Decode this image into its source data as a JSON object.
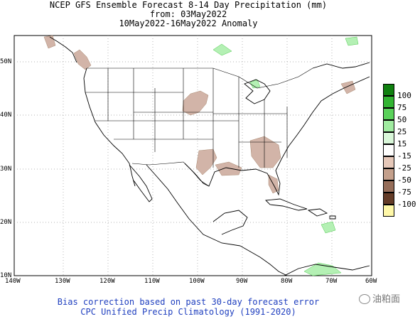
{
  "title": {
    "line1": "NCEP GFS Ensemble Forecast 8-14 Day Precipitation (mm)",
    "line2": "from: 03May2022",
    "line3": "10May2022-16May2022 Anomaly"
  },
  "map": {
    "lat_labels": [
      "50N",
      "40N",
      "30N",
      "20N",
      "10N"
    ],
    "lon_labels": [
      "140W",
      "130W",
      "120W",
      "110W",
      "100W",
      "90W",
      "80W",
      "70W",
      "60W"
    ],
    "colors": {
      "wet_light": "#b4f0b4",
      "wet_mid": "#4cc84c",
      "dry_light": "#d2b4a8",
      "dry_mid": "#a88870",
      "coast": "#000000",
      "grid": "#9a9a9a"
    }
  },
  "legend": {
    "items": [
      {
        "label": "100",
        "color": "#108010"
      },
      {
        "label": "75",
        "color": "#32b432"
      },
      {
        "label": "50",
        "color": "#5ad25a"
      },
      {
        "label": "25",
        "color": "#a0eba0"
      },
      {
        "label": "15",
        "color": "#d9f7d9"
      },
      {
        "label": "",
        "color": "#ffffff"
      },
      {
        "label": "-15",
        "color": "#e6c8b9"
      },
      {
        "label": "-25",
        "color": "#c4a08c"
      },
      {
        "label": "-50",
        "color": "#966e5a"
      },
      {
        "label": "-75",
        "color": "#643c28"
      },
      {
        "label": "-100",
        "color": "#fff8a8"
      }
    ],
    "top_value": "100",
    "between_labels": [
      "75",
      "50",
      "25",
      "15",
      "-15",
      "-25",
      "-50",
      "-75",
      "-100"
    ]
  },
  "footer": {
    "line1": "Bias correction based on past 30-day forecast error",
    "line2": "CPC Unified Precip Climatology (1991-2020)"
  },
  "watermark": "油粕面"
}
